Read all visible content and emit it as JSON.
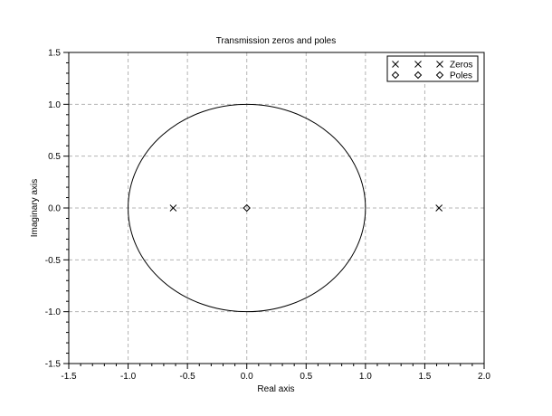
{
  "chart_data": {
    "type": "scatter",
    "title": "Transmission zeros and poles",
    "xlabel": "Real axis",
    "ylabel": "Imaginary axis",
    "xlim": [
      -1.5,
      2.0
    ],
    "ylim": [
      -1.5,
      1.5
    ],
    "xticks": [
      "-1.5",
      "-1.0",
      "-0.5",
      "0.0",
      "0.5",
      "1.0",
      "1.5",
      "2.0"
    ],
    "yticks": [
      "-1.5",
      "-1.0",
      "-0.5",
      "0.0",
      "0.5",
      "1.0",
      "1.5"
    ],
    "grid": true,
    "legend_position": "top-right",
    "unit_circle": {
      "center": [
        0,
        0
      ],
      "radius": 1
    },
    "series": [
      {
        "name": "Zeros",
        "marker": "x",
        "points": [
          [
            -0.62,
            0
          ],
          [
            1.62,
            0
          ]
        ]
      },
      {
        "name": "Poles",
        "marker": "diamond",
        "points": [
          [
            0,
            0
          ]
        ]
      }
    ]
  }
}
